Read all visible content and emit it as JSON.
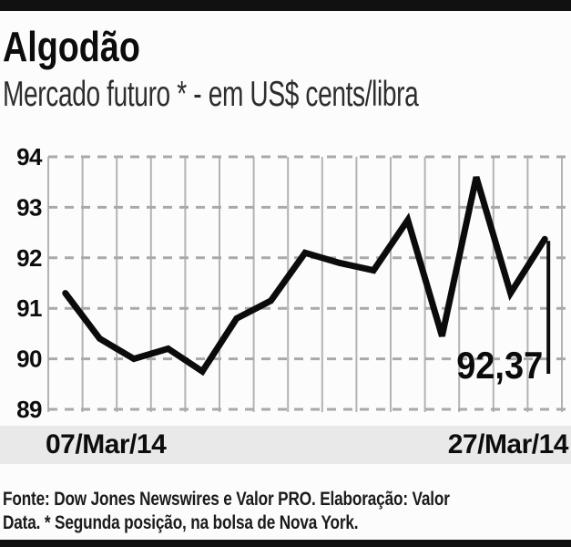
{
  "header": {
    "title": "Algodão",
    "subtitle": "Mercado futuro * - em US$ cents/libra"
  },
  "chart_data": {
    "type": "line",
    "title": "Algodão",
    "subtitle": "Mercado futuro * - em US$ cents/libra",
    "unit": "US$ cents/libra",
    "num_points": 15,
    "values": [
      91.3,
      90.4,
      90.0,
      90.2,
      89.75,
      90.8,
      91.15,
      92.1,
      91.9,
      91.75,
      92.75,
      90.45,
      93.6,
      91.3,
      92.37
    ],
    "ylim": [
      89,
      94
    ],
    "yticks": [
      "94",
      "93",
      "92",
      "91",
      "90",
      "89"
    ],
    "x_axis_labels": [
      "07/Mar/14",
      "27/Mar/14"
    ],
    "last_value_label": "92,37",
    "grid": {
      "vertical": "solid",
      "horizontal": "dashed"
    },
    "legend_position": "none"
  },
  "footer": {
    "lines": [
      "Fonte: Dow Jones Newswires e Valor PRO. Elaboração: Valor",
      "Data. * Segunda posição, na bolsa de Nova York."
    ]
  },
  "colors": {
    "line": "#0b0b0b",
    "grid_vertical": "#b3b3b3",
    "grid_dash": "#a9a9a9",
    "band_bg": "#e9e9e9",
    "rule_bar": "#111111",
    "tick_text": "#0d0d0d",
    "end_label_text": "#0b0b0b"
  }
}
